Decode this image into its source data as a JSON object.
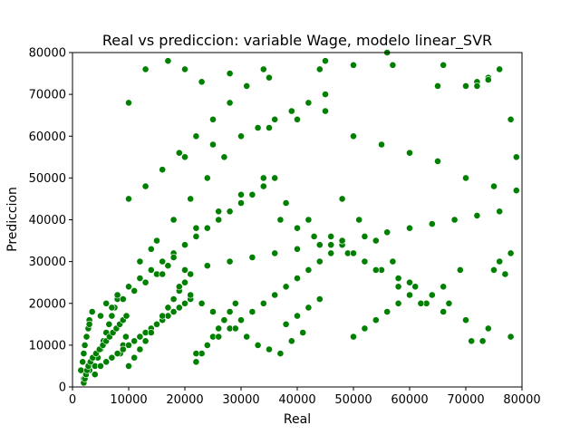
{
  "chart_data": {
    "type": "scatter",
    "title": "Real vs prediccion: variable Wage, modelo linear_SVR",
    "xlabel": "Real",
    "ylabel": "Prediccion",
    "xlim": [
      0,
      80000
    ],
    "ylim": [
      0,
      80000
    ],
    "xticks": [
      0,
      10000,
      20000,
      30000,
      40000,
      50000,
      60000,
      70000,
      80000
    ],
    "yticks": [
      0,
      10000,
      20000,
      30000,
      40000,
      50000,
      60000,
      70000,
      80000
    ],
    "grid": false,
    "legend": "none",
    "point_color": "#008000",
    "point_edge_color": "#ffffff",
    "series": [
      {
        "x": [
          1500,
          1800,
          2000,
          2200,
          2500,
          2800,
          3000,
          3500,
          4000,
          4500,
          5000,
          5500,
          6000,
          6500,
          7000,
          7500,
          8000,
          8500,
          9000,
          9500,
          2000,
          3000,
          4000,
          5000,
          6000,
          7000,
          8000,
          9000,
          10000,
          11000,
          12000,
          13000,
          14000,
          15000,
          16000,
          17000,
          18000,
          19000,
          20000,
          21000,
          10000,
          11000,
          12000,
          13000,
          14000,
          15000,
          16000,
          17000,
          18000,
          19000,
          20000,
          21000,
          22000,
          23000,
          24000,
          25000,
          26000,
          27000,
          28000,
          29000,
          22000,
          24000,
          26000,
          28000,
          30000,
          32000,
          34000,
          36000,
          38000,
          40000,
          42000,
          44000,
          46000,
          48000,
          50000,
          52000,
          54000,
          56000,
          58000,
          60000,
          3000,
          5000,
          7000,
          9000,
          11000,
          13000,
          15000,
          17000,
          19000,
          21000,
          23000,
          25000,
          27000,
          29000,
          31000,
          33000,
          35000,
          37000,
          39000,
          41000,
          6000,
          8000,
          10000,
          12000,
          14000,
          16000,
          18000,
          20000,
          22000,
          24000,
          26000,
          28000,
          30000,
          32000,
          34000,
          36000,
          38000,
          40000,
          42000,
          44000,
          12000,
          15000,
          18000,
          21000,
          24000,
          27000,
          30000,
          33000,
          36000,
          39000,
          42000,
          45000,
          48000,
          51000,
          54000,
          57000,
          60000,
          63000,
          66000,
          69000,
          10000,
          13000,
          16000,
          19000,
          22000,
          25000,
          28000,
          31000,
          34000,
          37000,
          40000,
          43000,
          46000,
          49000,
          52000,
          55000,
          58000,
          61000,
          64000,
          67000,
          70000,
          72000,
          74000,
          76000,
          78000,
          79000,
          71000,
          73000,
          75000,
          77000,
          10000,
          13000,
          17000,
          20000,
          23000,
          28000,
          35000,
          44000,
          45000,
          50000,
          56000,
          57000,
          65000,
          66000,
          70000,
          72000,
          74000,
          76000,
          78000,
          72000,
          14000,
          18000,
          22000,
          26000,
          30000,
          34000,
          38000,
          42000,
          46000,
          50000,
          54000,
          58000,
          62000,
          66000,
          70000,
          74000,
          78000,
          12000,
          16000,
          20000,
          24000,
          28000,
          32000,
          36000,
          40000,
          44000,
          48000,
          52000,
          56000,
          60000,
          64000,
          68000,
          72000,
          76000,
          2000,
          2200,
          2400,
          2600,
          2800,
          3200,
          3600,
          4200,
          4800,
          5400,
          6000,
          6600,
          7200,
          7800,
          8400,
          9000,
          9600,
          20000,
          25000,
          30000,
          35000,
          40000,
          45000,
          50000,
          55000,
          60000,
          65000,
          70000,
          75000,
          79000
        ],
        "y": [
          4000,
          6000,
          8000,
          10000,
          12000,
          14000,
          16000,
          18000,
          5000,
          7000,
          9000,
          11000,
          13000,
          15000,
          17000,
          19000,
          21000,
          8000,
          10000,
          12000,
          2000,
          4000,
          3000,
          5000,
          6000,
          7000,
          8000,
          9000,
          10000,
          11000,
          12000,
          13000,
          14000,
          15000,
          16000,
          17000,
          18000,
          19000,
          20000,
          21000,
          5000,
          7000,
          9000,
          11000,
          13000,
          15000,
          17000,
          19000,
          21000,
          23000,
          25000,
          27000,
          6000,
          8000,
          10000,
          12000,
          14000,
          16000,
          18000,
          20000,
          8000,
          10000,
          12000,
          14000,
          16000,
          18000,
          20000,
          22000,
          24000,
          26000,
          28000,
          30000,
          32000,
          34000,
          12000,
          14000,
          16000,
          18000,
          20000,
          22000,
          15000,
          17000,
          19000,
          21000,
          23000,
          25000,
          27000,
          29000,
          24000,
          22000,
          20000,
          18000,
          16000,
          14000,
          12000,
          10000,
          9000,
          8000,
          11000,
          13000,
          20000,
          22000,
          24000,
          26000,
          28000,
          30000,
          32000,
          34000,
          36000,
          38000,
          40000,
          42000,
          44000,
          46000,
          48000,
          50000,
          15000,
          17000,
          19000,
          21000,
          30000,
          35000,
          40000,
          45000,
          50000,
          55000,
          60000,
          62000,
          64000,
          66000,
          68000,
          70000,
          45000,
          40000,
          35000,
          30000,
          25000,
          20000,
          24000,
          28000,
          45000,
          48000,
          52000,
          56000,
          60000,
          64000,
          68000,
          72000,
          76000,
          40000,
          38000,
          36000,
          34000,
          32000,
          30000,
          28000,
          26000,
          24000,
          22000,
          20000,
          72000,
          73000,
          74000,
          30000,
          32000,
          55000,
          11000,
          11000,
          28000,
          27000,
          68000,
          76000,
          78000,
          76000,
          73000,
          75000,
          74000,
          76000,
          78000,
          77000,
          80000,
          77000,
          72000,
          77000,
          72000,
          73000,
          73500,
          76000,
          64000,
          72000,
          33000,
          31000,
          38000,
          42000,
          46000,
          50000,
          44000,
          40000,
          36000,
          32000,
          28000,
          24000,
          20000,
          18000,
          16000,
          14000,
          12000,
          26000,
          27000,
          28000,
          29000,
          30000,
          31000,
          32000,
          33000,
          34000,
          35000,
          36000,
          37000,
          38000,
          39000,
          40000,
          41000,
          42000,
          1000,
          2000,
          3000,
          4000,
          5000,
          6000,
          7000,
          8000,
          9000,
          10000,
          11000,
          12000,
          13000,
          14000,
          15000,
          16000,
          17000,
          55000,
          58000,
          60000,
          62000,
          64000,
          66000,
          60000,
          58000,
          56000,
          54000,
          50000,
          48000,
          47000
        ]
      }
    ]
  }
}
